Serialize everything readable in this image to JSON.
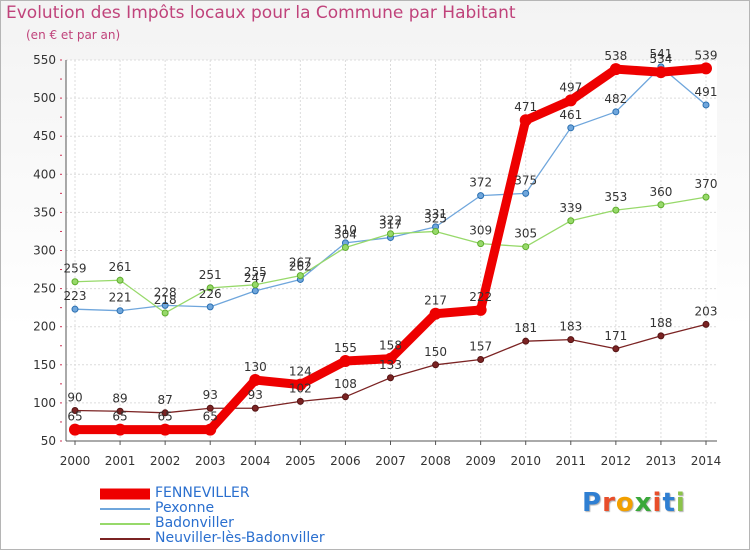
{
  "title": "Evolution des Impôts locaux pour la Commune par Habitant",
  "subtitle": "(en € et par an)",
  "brand": {
    "letters": [
      "P",
      "r",
      "o",
      "x",
      "i",
      "t",
      "i"
    ],
    "colors": [
      "#2f7fd2",
      "#e84e2a",
      "#f2a000",
      "#3aa83a",
      "#e84e2a",
      "#2f7fd2",
      "#8bc34a"
    ]
  },
  "chart_data": {
    "type": "line",
    "title": "Evolution des Impôts locaux pour la Commune par Habitant",
    "subtitle": "(en € et par an)",
    "xlabel": "",
    "ylabel": "",
    "ylim": [
      50,
      550
    ],
    "yticks": [
      50,
      100,
      150,
      200,
      250,
      300,
      350,
      400,
      450,
      500,
      550
    ],
    "grid": true,
    "legend_position": "bottom-left",
    "categories": [
      "2000",
      "2001",
      "2002",
      "2003",
      "2004",
      "2005",
      "2006",
      "2007",
      "2008",
      "2009",
      "2010",
      "2011",
      "2012",
      "2013",
      "2014"
    ],
    "series": [
      {
        "name": "FENNEVILLER",
        "color": "#ee0000",
        "values": [
          65,
          65,
          65,
          65,
          130,
          124,
          155,
          158,
          217,
          222,
          471,
          497,
          538,
          534,
          539
        ],
        "labels": [
          "65",
          "65",
          "65",
          "65",
          "130",
          "124",
          "155",
          "158",
          "217",
          "222",
          "471",
          "497",
          "538",
          "534",
          "539"
        ]
      },
      {
        "name": "Pexonne",
        "color": "#6fa6dc",
        "values": [
          223,
          221,
          228,
          226,
          247,
          262,
          310,
          317,
          331,
          372,
          375,
          461,
          482,
          541,
          491
        ],
        "labels": [
          "223",
          "221",
          "228",
          "226",
          "247",
          "262",
          "310",
          "317",
          "331",
          "372",
          "375",
          "461",
          "482",
          "541",
          "491"
        ]
      },
      {
        "name": "Badonviller",
        "color": "#97d96a",
        "values": [
          259,
          261,
          218,
          251,
          255,
          267,
          304,
          322,
          325,
          309,
          305,
          339,
          353,
          360,
          370
        ],
        "labels": [
          "259",
          "261",
          "218",
          "251",
          "255",
          "267",
          "304",
          "322",
          "325",
          "309",
          "305",
          "339",
          "353",
          "360",
          "370"
        ]
      },
      {
        "name": "Neuviller-lès-Badonviller",
        "color": "#7b2323",
        "values": [
          90,
          89,
          87,
          93,
          93,
          102,
          108,
          133,
          150,
          157,
          181,
          183,
          171,
          188,
          203
        ],
        "labels": [
          "90",
          "89",
          "87",
          "93",
          "93",
          "102",
          "108",
          "133",
          "150",
          "157",
          "181",
          "183",
          "171",
          "188",
          "203"
        ]
      }
    ]
  }
}
